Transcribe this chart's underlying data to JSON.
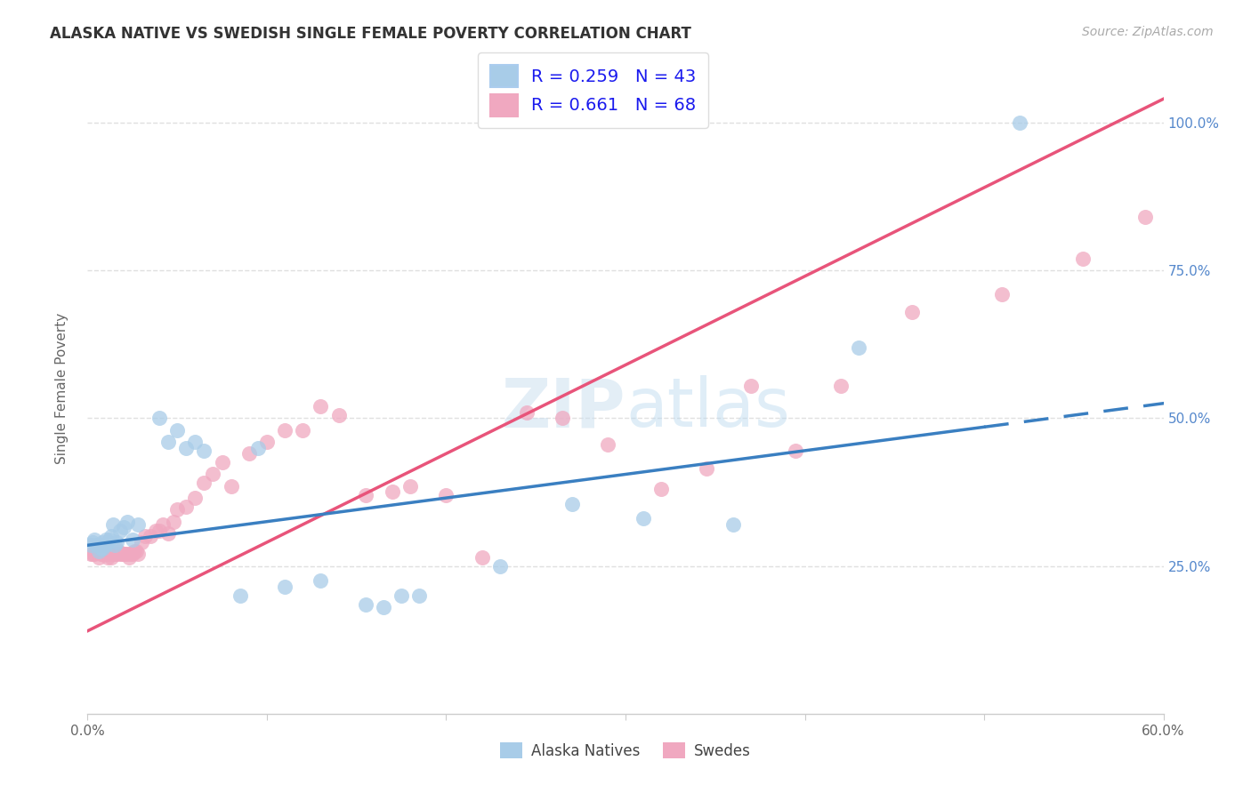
{
  "title": "ALASKA NATIVE VS SWEDISH SINGLE FEMALE POVERTY CORRELATION CHART",
  "source": "Source: ZipAtlas.com",
  "ylabel": "Single Female Poverty",
  "blue_scatter_color": "#a8cce8",
  "pink_scatter_color": "#f0a8c0",
  "blue_line_color": "#3a7fc1",
  "pink_line_color": "#e8547a",
  "background_color": "#ffffff",
  "grid_color": "#e0e0e0",
  "watermark": "ZIPatlas",
  "watermark_color": "#cce0f0",
  "legend_label_blue": "R = 0.259   N = 43",
  "legend_label_pink": "R = 0.661   N = 68",
  "bottom_label_blue": "Alaska Natives",
  "bottom_label_pink": "Swedes",
  "xlim": [
    0.0,
    0.6
  ],
  "ylim": [
    0.0,
    1.1
  ],
  "yticks": [
    0.25,
    0.5,
    0.75,
    1.0
  ],
  "alaska_x": [
    0.002,
    0.003,
    0.004,
    0.005,
    0.006,
    0.006,
    0.007,
    0.008,
    0.008,
    0.009,
    0.01,
    0.01,
    0.011,
    0.012,
    0.013,
    0.014,
    0.015,
    0.016,
    0.018,
    0.02,
    0.022,
    0.025,
    0.028,
    0.04,
    0.045,
    0.05,
    0.055,
    0.06,
    0.065,
    0.085,
    0.095,
    0.11,
    0.13,
    0.155,
    0.165,
    0.175,
    0.185,
    0.23,
    0.27,
    0.31,
    0.36,
    0.43,
    0.52
  ],
  "alaska_y": [
    0.285,
    0.29,
    0.295,
    0.285,
    0.275,
    0.285,
    0.28,
    0.29,
    0.28,
    0.285,
    0.285,
    0.295,
    0.29,
    0.295,
    0.3,
    0.32,
    0.285,
    0.29,
    0.31,
    0.315,
    0.325,
    0.295,
    0.32,
    0.5,
    0.46,
    0.48,
    0.45,
    0.46,
    0.445,
    0.2,
    0.45,
    0.215,
    0.225,
    0.185,
    0.18,
    0.2,
    0.2,
    0.25,
    0.355,
    0.33,
    0.32,
    0.62,
    1.0
  ],
  "swede_x": [
    0.002,
    0.003,
    0.004,
    0.005,
    0.006,
    0.007,
    0.007,
    0.008,
    0.009,
    0.01,
    0.01,
    0.011,
    0.012,
    0.012,
    0.013,
    0.014,
    0.015,
    0.016,
    0.017,
    0.018,
    0.019,
    0.02,
    0.021,
    0.022,
    0.023,
    0.024,
    0.025,
    0.026,
    0.027,
    0.028,
    0.03,
    0.032,
    0.035,
    0.038,
    0.04,
    0.042,
    0.045,
    0.048,
    0.05,
    0.055,
    0.06,
    0.065,
    0.07,
    0.075,
    0.08,
    0.09,
    0.1,
    0.11,
    0.12,
    0.13,
    0.14,
    0.155,
    0.17,
    0.18,
    0.2,
    0.22,
    0.245,
    0.265,
    0.29,
    0.32,
    0.345,
    0.37,
    0.395,
    0.42,
    0.46,
    0.51,
    0.555,
    0.59
  ],
  "swede_y": [
    0.27,
    0.27,
    0.27,
    0.275,
    0.265,
    0.27,
    0.275,
    0.27,
    0.27,
    0.27,
    0.275,
    0.265,
    0.27,
    0.275,
    0.265,
    0.27,
    0.27,
    0.27,
    0.275,
    0.27,
    0.27,
    0.27,
    0.27,
    0.27,
    0.265,
    0.27,
    0.27,
    0.275,
    0.275,
    0.27,
    0.29,
    0.3,
    0.3,
    0.31,
    0.31,
    0.32,
    0.305,
    0.325,
    0.345,
    0.35,
    0.365,
    0.39,
    0.405,
    0.425,
    0.385,
    0.44,
    0.46,
    0.48,
    0.48,
    0.52,
    0.505,
    0.37,
    0.375,
    0.385,
    0.37,
    0.265,
    0.51,
    0.5,
    0.455,
    0.38,
    0.415,
    0.555,
    0.445,
    0.555,
    0.68,
    0.71,
    0.77,
    0.84
  ],
  "blue_intercept": 0.285,
  "blue_slope": 0.4,
  "pink_intercept": 0.14,
  "pink_slope": 1.5
}
